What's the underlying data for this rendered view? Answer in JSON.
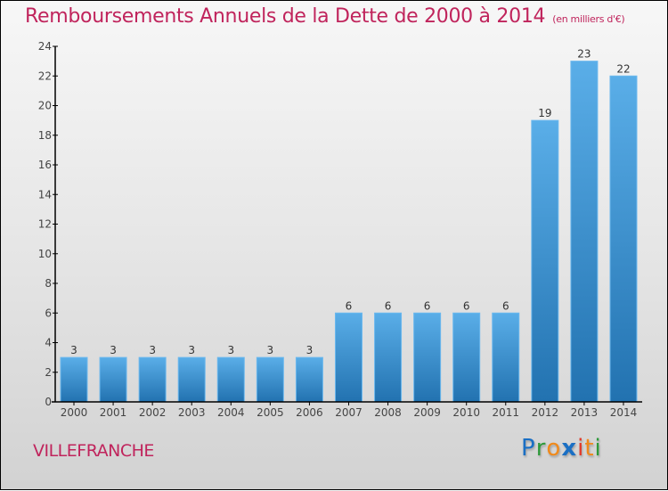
{
  "title": "Remboursements Annuels de la Dette de 2000 à 2014",
  "unit": "(en milliers d'€)",
  "city": "VILLEFRANCHE",
  "logo": {
    "letters": [
      {
        "char": "P",
        "color": "#1a6fc4"
      },
      {
        "char": "r",
        "color": "#2e9a3a"
      },
      {
        "char": "o",
        "color": "#f08a1c"
      },
      {
        "char": "x",
        "color": "#1a6fc4"
      },
      {
        "char": "i",
        "color": "#e23a2a"
      },
      {
        "char": "t",
        "color": "#f08a1c"
      },
      {
        "char": "i",
        "color": "#2e9a3a"
      }
    ]
  },
  "colors": {
    "title": "#c0245c",
    "bar_top": "#5aaee8",
    "bar_bottom": "#2272b0"
  },
  "chart_data": {
    "type": "bar",
    "title": "Remboursements Annuels de la Dette de 2000 à 2014",
    "subtitle": "(en milliers d'€)",
    "xlabel": "",
    "ylabel": "",
    "categories": [
      "2000",
      "2001",
      "2002",
      "2003",
      "2004",
      "2005",
      "2006",
      "2007",
      "2008",
      "2009",
      "2010",
      "2011",
      "2012",
      "2013",
      "2014"
    ],
    "values": [
      3,
      3,
      3,
      3,
      3,
      3,
      3,
      6,
      6,
      6,
      6,
      6,
      19,
      23,
      22
    ],
    "ylim": [
      0,
      24
    ],
    "yticks": [
      0,
      2,
      4,
      6,
      8,
      10,
      12,
      14,
      16,
      18,
      20,
      22,
      24
    ],
    "grid": false,
    "legend": "none"
  }
}
